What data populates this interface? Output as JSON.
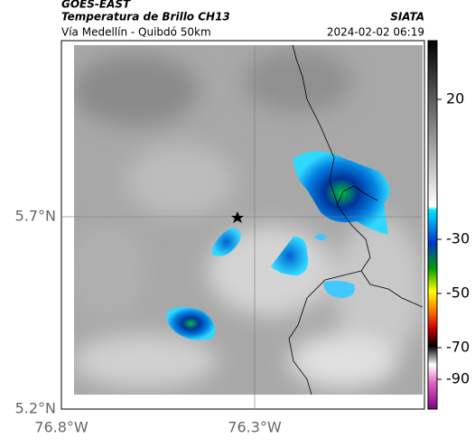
{
  "header": {
    "source": "GOES-EAST",
    "title": "Temperatura de Brillo CH13",
    "subtitle": "Vía Medellín - Quibdó 50km",
    "brand": "SIATA",
    "timestamp": "2024-02-02 06:19"
  },
  "axes": {
    "y_ticks": [
      "5.7°N",
      "5.2°N"
    ],
    "x_ticks": [
      "76.8°W",
      "76.3°W"
    ]
  },
  "colorbar": {
    "ticks": [
      "20",
      "-30",
      "-50",
      "-70",
      "-90"
    ]
  }
}
